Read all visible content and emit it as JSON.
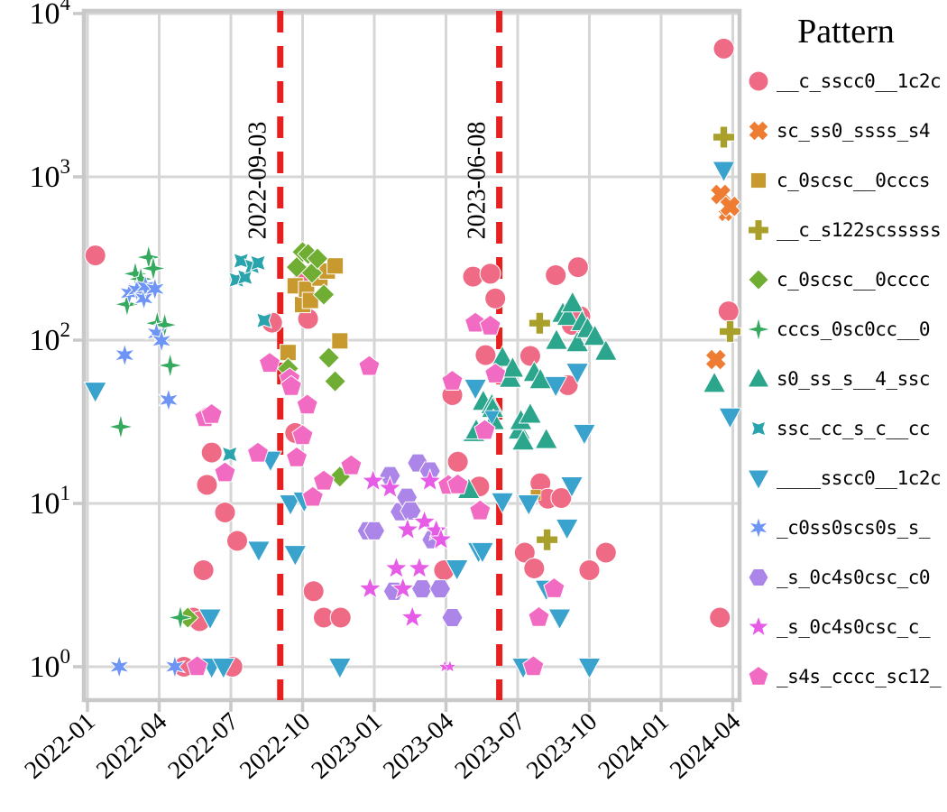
{
  "chart_data": {
    "type": "scatter",
    "legend_title": "Pattern",
    "x_axis": {
      "type": "date",
      "tick_labels": [
        "2022-01",
        "2022-04",
        "2022-07",
        "2022-10",
        "2023-01",
        "2023-04",
        "2023-07",
        "2023-10",
        "2024-01",
        "2024-04"
      ]
    },
    "y_axis": {
      "scale": "log",
      "tick_labels": [
        "10^0",
        "10^1",
        "10^2",
        "10^3",
        "10^4"
      ],
      "tick_values": [
        1,
        10,
        100,
        1000,
        10000
      ],
      "range": [
        0.63,
        10400
      ]
    },
    "grid": true,
    "vlines": [
      {
        "label": "2022-09-03",
        "color": "#e81f1f",
        "style": "dashed"
      },
      {
        "label": "2023-06-08",
        "color": "#e81f1f",
        "style": "dashed"
      }
    ],
    "series": [
      {
        "name": "__c_sscc0__1c2c",
        "marker": "circle",
        "color": "#ee6a85",
        "points": [
          [
            "2022-01-11",
            330
          ],
          [
            "2022-05-02",
            1.0
          ],
          [
            "2022-05-14",
            2.0
          ],
          [
            "2022-05-22",
            1.9
          ],
          [
            "2022-05-27",
            3.9
          ],
          [
            "2022-06-01",
            13
          ],
          [
            "2022-06-07",
            20.5
          ],
          [
            "2022-06-24",
            8.8
          ],
          [
            "2022-07-03",
            1.0
          ],
          [
            "2022-07-09",
            5.9
          ],
          [
            "2022-08-23",
            128
          ],
          [
            "2022-09-22",
            27
          ],
          [
            "2022-10-03",
            250
          ],
          [
            "2022-10-08",
            135
          ],
          [
            "2022-10-15",
            2.9
          ],
          [
            "2022-10-28",
            2.0
          ],
          [
            "2022-11-19",
            2.0
          ],
          [
            "2023-03-29",
            3.9
          ],
          [
            "2023-04-09",
            46
          ],
          [
            "2023-04-16",
            18
          ],
          [
            "2023-05-05",
            245
          ],
          [
            "2023-05-13",
            12.7
          ],
          [
            "2023-05-21",
            81
          ],
          [
            "2023-05-27",
            255
          ],
          [
            "2023-06-03",
            180
          ],
          [
            "2023-07-10",
            5.0
          ],
          [
            "2023-07-17",
            80
          ],
          [
            "2023-07-22",
            4.0
          ],
          [
            "2023-07-30",
            13.3
          ],
          [
            "2023-08-09",
            10.7
          ],
          [
            "2023-08-19",
            250
          ],
          [
            "2023-08-26",
            10.8
          ],
          [
            "2023-09-04",
            53
          ],
          [
            "2023-09-09",
            124
          ],
          [
            "2023-09-17",
            280
          ],
          [
            "2023-09-20",
            140
          ],
          [
            "2023-10-01",
            3.9
          ],
          [
            "2023-10-22",
            5.0
          ],
          [
            "2024-03-15",
            2.0
          ],
          [
            "2024-03-20",
            6100
          ],
          [
            "2024-03-26",
            150
          ]
        ]
      },
      {
        "name": "sc_ss0_ssss_s4",
        "marker": "x",
        "color": "#ee7c33",
        "points": [
          [
            "2024-03-10",
            76
          ],
          [
            "2024-03-16",
            780
          ],
          [
            "2024-03-22",
            590,
            0.7
          ],
          [
            "2024-03-28",
            660
          ]
        ]
      },
      {
        "name": "c_0scsc__0cccs",
        "marker": "square",
        "color": "#c8992e",
        "points": [
          [
            "2022-09-13",
            84
          ],
          [
            "2022-09-22",
            215
          ],
          [
            "2022-10-01",
            165
          ],
          [
            "2022-10-06",
            205
          ],
          [
            "2022-10-11",
            175
          ],
          [
            "2022-10-23",
            240
          ],
          [
            "2022-11-02",
            265
          ],
          [
            "2022-11-12",
            285
          ],
          [
            "2022-11-18",
            99
          ],
          [
            "2023-07-24",
            11.3,
            0.65
          ]
        ]
      },
      {
        "name": "__c_s122scsssss",
        "marker": "plus",
        "color": "#a9a02c",
        "points": [
          [
            "2023-07-29",
            127
          ],
          [
            "2023-08-08",
            6.0
          ],
          [
            "2024-03-20",
            1750
          ],
          [
            "2024-03-28",
            113
          ]
        ]
      },
      {
        "name": "c_0scsc__0cccc",
        "marker": "diamond",
        "color": "#6fae33",
        "points": [
          [
            "2022-05-07",
            2.0
          ],
          [
            "2022-09-13",
            67
          ],
          [
            "2022-09-24",
            280
          ],
          [
            "2022-10-01",
            347
          ],
          [
            "2022-10-08",
            337
          ],
          [
            "2022-10-13",
            258
          ],
          [
            "2022-10-20",
            316
          ],
          [
            "2022-10-28",
            190
          ],
          [
            "2022-11-04",
            78
          ],
          [
            "2022-11-12",
            56
          ],
          [
            "2022-11-18",
            14.6
          ]
        ]
      },
      {
        "name": "cccs_0sc0cc__0",
        "marker": "thin_diamond",
        "color": "#35aa5e",
        "points": [
          [
            "2022-02-13",
            29.5
          ],
          [
            "2022-02-21",
            166
          ],
          [
            "2022-03-01",
            255
          ],
          [
            "2022-03-08",
            237
          ],
          [
            "2022-03-18",
            322
          ],
          [
            "2022-03-24",
            275
          ],
          [
            "2022-03-29",
            127
          ],
          [
            "2022-04-08",
            124
          ],
          [
            "2022-04-15",
            70
          ],
          [
            "2022-04-28",
            2.0
          ]
        ]
      },
      {
        "name": "s0_ss_s__4_ssc",
        "marker": "triangle_up",
        "color": "#2ba68c",
        "points": [
          [
            "2023-04-30",
            12.1
          ],
          [
            "2023-05-06",
            27
          ],
          [
            "2023-05-09",
            28
          ],
          [
            "2023-05-18",
            42
          ],
          [
            "2023-05-29",
            40
          ],
          [
            "2023-05-30",
            38
          ],
          [
            "2023-05-31",
            32
          ],
          [
            "2023-06-12",
            78
          ],
          [
            "2023-06-22",
            58
          ],
          [
            "2023-06-25",
            67
          ],
          [
            "2023-07-03",
            28
          ],
          [
            "2023-07-05",
            32
          ],
          [
            "2023-07-08",
            24
          ],
          [
            "2023-07-17",
            35
          ],
          [
            "2023-07-22",
            63
          ],
          [
            "2023-07-30",
            57
          ],
          [
            "2023-08-07",
            24.5
          ],
          [
            "2023-08-20",
            99
          ],
          [
            "2023-08-28",
            145
          ],
          [
            "2023-09-04",
            139
          ],
          [
            "2023-09-10",
            168
          ],
          [
            "2023-09-16",
            96
          ],
          [
            "2023-09-22",
            129
          ],
          [
            "2023-09-29",
            117
          ],
          [
            "2023-10-08",
            105
          ],
          [
            "2023-10-22",
            85
          ],
          [
            "2024-03-08",
            54
          ]
        ]
      },
      {
        "name": "ssc_cc_s_c__cc",
        "marker": "x_star",
        "color": "#29a3ac",
        "points": [
          [
            "2022-06-30",
            20
          ],
          [
            "2022-07-08",
            234
          ],
          [
            "2022-07-14",
            306
          ],
          [
            "2022-07-19",
            243
          ],
          [
            "2022-07-28",
            283
          ],
          [
            "2022-08-05",
            297
          ],
          [
            "2022-08-13",
            132
          ]
        ]
      },
      {
        "name": "____sscc0__1c2c",
        "marker": "triangle_down",
        "color": "#3aa3cd",
        "points": [
          [
            "2022-01-11",
            49
          ],
          [
            "2022-06-05",
            2.0
          ],
          [
            "2022-06-07",
            1.0
          ],
          [
            "2022-06-22",
            1.0
          ],
          [
            "2022-08-06",
            5.2
          ],
          [
            "2022-08-21",
            18.5
          ],
          [
            "2022-09-16",
            10.0
          ],
          [
            "2022-09-22",
            4.9
          ],
          [
            "2022-10-03",
            10.4
          ],
          [
            "2022-11-18",
            1.0
          ],
          [
            "2023-04-15",
            4.0
          ],
          [
            "2023-05-08",
            51
          ],
          [
            "2023-05-12",
            5.1
          ],
          [
            "2023-05-17",
            5.1
          ],
          [
            "2023-05-29",
            34,
            0.7
          ],
          [
            "2023-06-12",
            10.3
          ],
          [
            "2023-07-08",
            1.0
          ],
          [
            "2023-07-15",
            10.0
          ],
          [
            "2023-08-07",
            3.0
          ],
          [
            "2023-08-19",
            53
          ],
          [
            "2023-08-24",
            2.0
          ],
          [
            "2023-09-03",
            7.1
          ],
          [
            "2023-09-09",
            12.9
          ],
          [
            "2023-09-16",
            64
          ],
          [
            "2023-09-25",
            27
          ],
          [
            "2023-10-01",
            1.0
          ],
          [
            "2024-03-20",
            1100
          ],
          [
            "2024-03-28",
            34
          ]
        ]
      },
      {
        "name": "_c0ss0scs0s_s_",
        "marker": "star6",
        "color": "#6e95f5",
        "points": [
          [
            "2022-02-11",
            1.0
          ],
          [
            "2022-02-18",
            81
          ],
          [
            "2022-02-24",
            194
          ],
          [
            "2022-03-03",
            203
          ],
          [
            "2022-03-12",
            180
          ],
          [
            "2022-03-14",
            213
          ],
          [
            "2022-03-26",
            206
          ],
          [
            "2022-03-28",
            110
          ],
          [
            "2022-04-04",
            99
          ],
          [
            "2022-04-13",
            43
          ],
          [
            "2022-04-21",
            1.0
          ]
        ]
      },
      {
        "name": "_s_0c4s0csc_c0",
        "marker": "hexagon",
        "color": "#ab85e8",
        "points": [
          [
            "2022-12-23",
            6.8
          ],
          [
            "2023-01-01",
            6.8
          ],
          [
            "2023-01-21",
            14.8
          ],
          [
            "2023-01-26",
            2.9
          ],
          [
            "2023-02-04",
            8.9
          ],
          [
            "2023-02-12",
            10.9
          ],
          [
            "2023-02-17",
            9.0
          ],
          [
            "2023-02-26",
            17.7
          ],
          [
            "2023-03-01",
            3.0
          ],
          [
            "2023-03-11",
            15.8
          ],
          [
            "2023-03-14",
            6.0
          ],
          [
            "2023-03-24",
            3.0
          ],
          [
            "2023-04-09",
            2.0
          ]
        ]
      },
      {
        "name": "_s_0c4s0csc_c_",
        "marker": "star5",
        "color": "#e65ce6",
        "points": [
          [
            "2022-12-26",
            3.0
          ],
          [
            "2022-12-30",
            13.7
          ],
          [
            "2023-01-21",
            12.4
          ],
          [
            "2023-01-29",
            4.0
          ],
          [
            "2023-02-07",
            3.0
          ],
          [
            "2023-02-13",
            6.9
          ],
          [
            "2023-02-19",
            2.0
          ],
          [
            "2023-02-28",
            4.0
          ],
          [
            "2023-03-04",
            7.7
          ],
          [
            "2023-03-11",
            13.7
          ],
          [
            "2023-03-19",
            6.8
          ],
          [
            "2023-03-25",
            6.0
          ],
          [
            "2023-03-30",
            1.0,
            0.55
          ],
          [
            "2023-04-06",
            1.0,
            0.55
          ]
        ]
      },
      {
        "name": "_s4s_cccc_sc12_",
        "marker": "pentagon",
        "color": "#f26bc3",
        "points": [
          [
            "2022-05-19",
            1.0
          ],
          [
            "2022-05-29",
            33.5
          ],
          [
            "2022-06-07",
            35
          ],
          [
            "2022-06-24",
            15.4
          ],
          [
            "2022-08-05",
            20.3
          ],
          [
            "2022-08-20",
            72
          ],
          [
            "2022-09-15",
            58
          ],
          [
            "2022-09-17",
            52
          ],
          [
            "2022-09-24",
            19
          ],
          [
            "2022-10-01",
            26
          ],
          [
            "2022-10-07",
            40
          ],
          [
            "2022-10-14",
            10.9
          ],
          [
            "2022-10-28",
            13.7
          ],
          [
            "2022-12-02",
            17
          ],
          [
            "2022-12-25",
            69
          ],
          [
            "2023-04-04",
            12.9
          ],
          [
            "2023-04-09",
            56
          ],
          [
            "2023-04-16",
            13.0
          ],
          [
            "2023-05-08",
            127
          ],
          [
            "2023-05-14",
            9.0
          ],
          [
            "2023-05-20",
            28
          ],
          [
            "2023-05-27",
            122
          ],
          [
            "2023-06-03",
            62
          ],
          [
            "2023-07-21",
            1.0
          ],
          [
            "2023-07-28",
            2.0
          ],
          [
            "2023-08-17",
            3.0
          ]
        ]
      }
    ]
  }
}
